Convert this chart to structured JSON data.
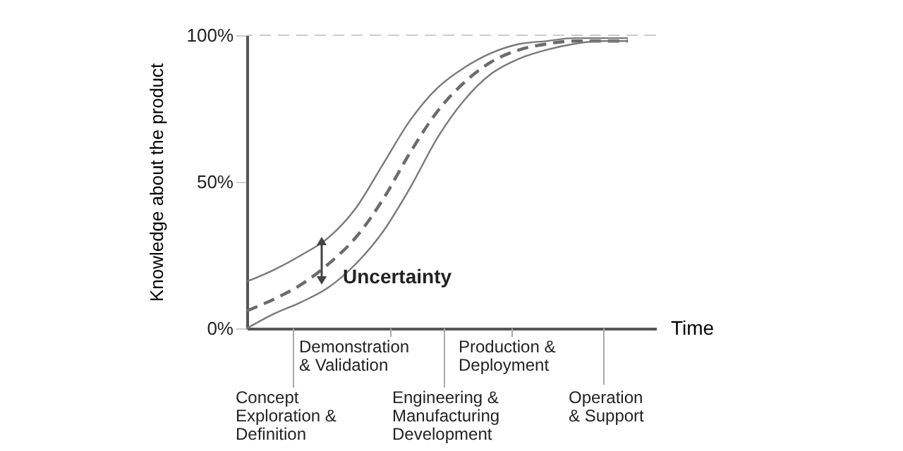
{
  "chart_data": {
    "type": "line",
    "xlabel": "Time",
    "ylabel": "Knowledge about the product",
    "categories": [
      null,
      null,
      null,
      null,
      null,
      null,
      null,
      null,
      null,
      null,
      null,
      null,
      null,
      null,
      null
    ],
    "series": [
      {
        "color": "#7a7a7a",
        "line_style": "solid",
        "values": [
          16,
          20,
          25,
          31,
          41,
          56,
          71,
          82,
          89,
          94,
          97,
          98,
          99,
          99,
          99
        ]
      },
      {
        "color": "#6b6b6b",
        "line_style": "dashed",
        "values": [
          6,
          10,
          15,
          22,
          31,
          44,
          60,
          74,
          84,
          91,
          95,
          97,
          98,
          98,
          98
        ]
      },
      {
        "color": "#7a7a7a",
        "line_style": "solid",
        "values": [
          0,
          5,
          9,
          14,
          22,
          33,
          48,
          65,
          78,
          87,
          92,
          95,
          97,
          98,
          98
        ]
      }
    ],
    "ylim": [
      0,
      100
    ],
    "yticks": [
      {
        "value": 0,
        "label": "0%"
      },
      {
        "value": 50,
        "label": "50%"
      },
      {
        "value": 100,
        "label": "100%"
      }
    ],
    "ref_lines": [
      {
        "axis": "y",
        "value": 100,
        "color": "#cccccc",
        "line_style": "dashed"
      }
    ],
    "tick_labels": "y",
    "grid": false,
    "annotations": [
      "Uncertainty",
      "Concept\nExploration &\nDefinition",
      "Demonstration\n& Validation",
      "Engineering &\nManufacturing\nDevelopment",
      "Production &\nDeployment",
      "Operation\n& Support"
    ]
  }
}
